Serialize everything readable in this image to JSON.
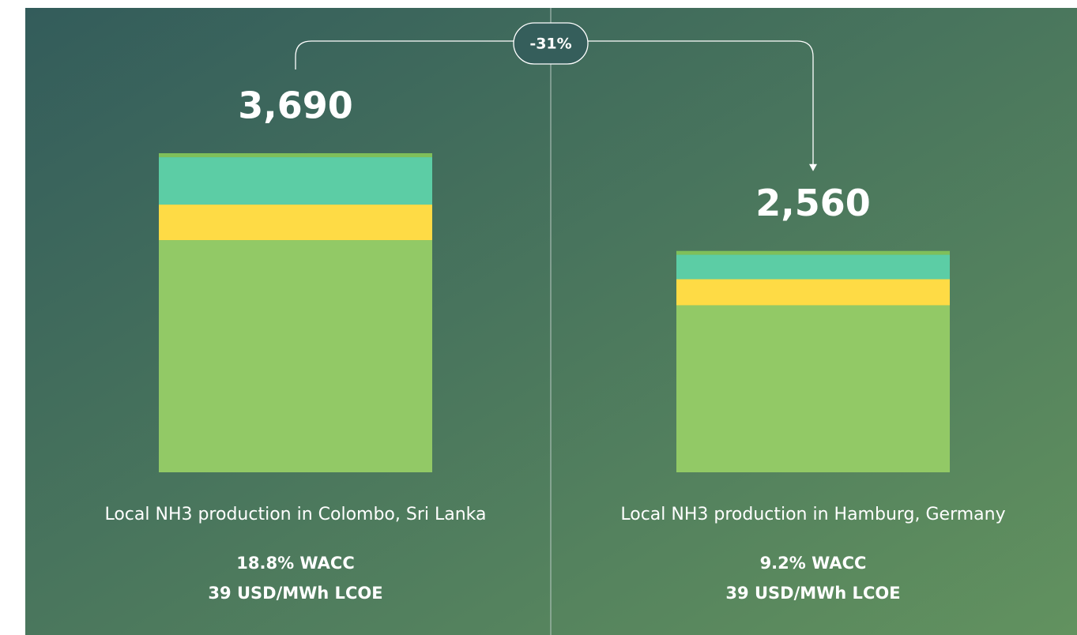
{
  "chart_data": {
    "type": "stacked-bar",
    "categories": [
      "Local NH3 production in Colombo, Sri Lanka",
      "Local NH3 production in Hamburg, Germany"
    ],
    "details": [
      [
        "18.8% WACC",
        "39 USD/MWh LCOE"
      ],
      [
        "9.2% WACC",
        "39 USD/MWh LCOE"
      ]
    ],
    "series": [
      {
        "color": "#92c966",
        "values": [
          2685,
          1932
        ]
      },
      {
        "color": "#fedb45",
        "values": [
          411,
          301
        ]
      },
      {
        "color": "#5ccda5",
        "values": [
          548,
          283
        ]
      },
      {
        "color": "#7fbf5a",
        "values": [
          46,
          44
        ]
      }
    ],
    "totals": [
      3690,
      2560
    ],
    "total_labels": [
      "3,690",
      "2,560"
    ],
    "annotation": "-31%"
  }
}
